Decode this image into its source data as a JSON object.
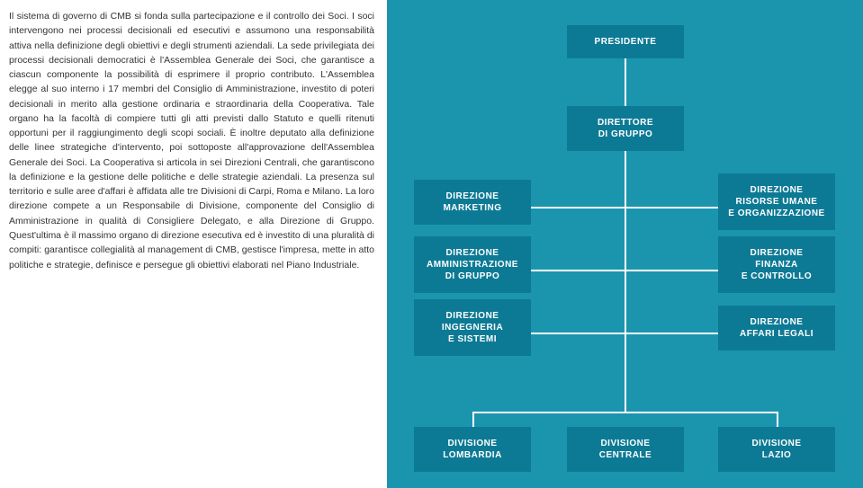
{
  "paragraph": "Il sistema di governo di CMB si fonda sulla partecipazione e il controllo dei Soci. I soci intervengono nei processi decisionali ed esecutivi e assumono una responsabilità attiva nella definizione degli obiettivi e degli strumenti aziendali. La sede privilegiata dei processi decisionali democratici è l'Assemblea Generale dei Soci, che garantisce a ciascun componente la possibilità di esprimere il proprio contributo. L'Assemblea elegge al suo interno i 17 membri del Consiglio di Amministrazione, investito di poteri decisionali in merito alla gestione ordinaria e straordinaria della Cooperativa. Tale organo ha la facoltà di compiere tutti gli atti previsti dallo Statuto e quelli ritenuti opportuni per il raggiungimento degli scopi sociali. È inoltre deputato alla definizione delle linee strategiche d'intervento, poi sottoposte all'approvazione dell'Assemblea Generale dei Soci. La Cooperativa si articola in sei Direzioni Centrali, che garantiscono la definizione e la gestione delle politiche e delle strategie aziendali. La presenza sul territorio e sulle aree d'affari è affidata alle tre Divisioni di Carpi, Roma e Milano. La loro direzione compete a un Responsabile di Divisione, componente del Consiglio di Amministrazione in qualità di Consigliere Delegato, e alla Direzione di Gruppo. Quest'ultima è il massimo organo di direzione esecutiva ed è investito di una pluralità di compiti: garantisce collegialità al management di CMB, gestisce l'impresa, mette in atto politiche e strategie, definisce e persegue gli obiettivi elaborati nel Piano Industriale.",
  "chart": {
    "background_color": "#1b95ae",
    "node_color": "#0d7a95",
    "line_color": "#ffffff",
    "text_color": "#ffffff",
    "font_size": 10,
    "nodes": {
      "presidente": "PRESIDENTE",
      "direttore": "DIRETTORE\nDI GRUPPO",
      "marketing": "DIREZIONE\nMARKETING",
      "risorse": "DIREZIONE\nRISORSE UMANE\nE ORGANIZZAZIONE",
      "amministrazione": "DIREZIONE\nAMMINISTRAZIONE\nDI GRUPPO",
      "finanza": "DIREZIONE\nFINANZA\nE CONTROLLO",
      "ingegneria": "DIREZIONE\nINGEGNERIA\nE SISTEMI",
      "legali": "DIREZIONE\nAFFARI LEGALI",
      "lombardia": "DIVISIONE\nLOMBARDIA",
      "centrale": "DIVISIONE\nCENTRALE",
      "lazio": "DIVISIONE\nLAZIO"
    }
  }
}
